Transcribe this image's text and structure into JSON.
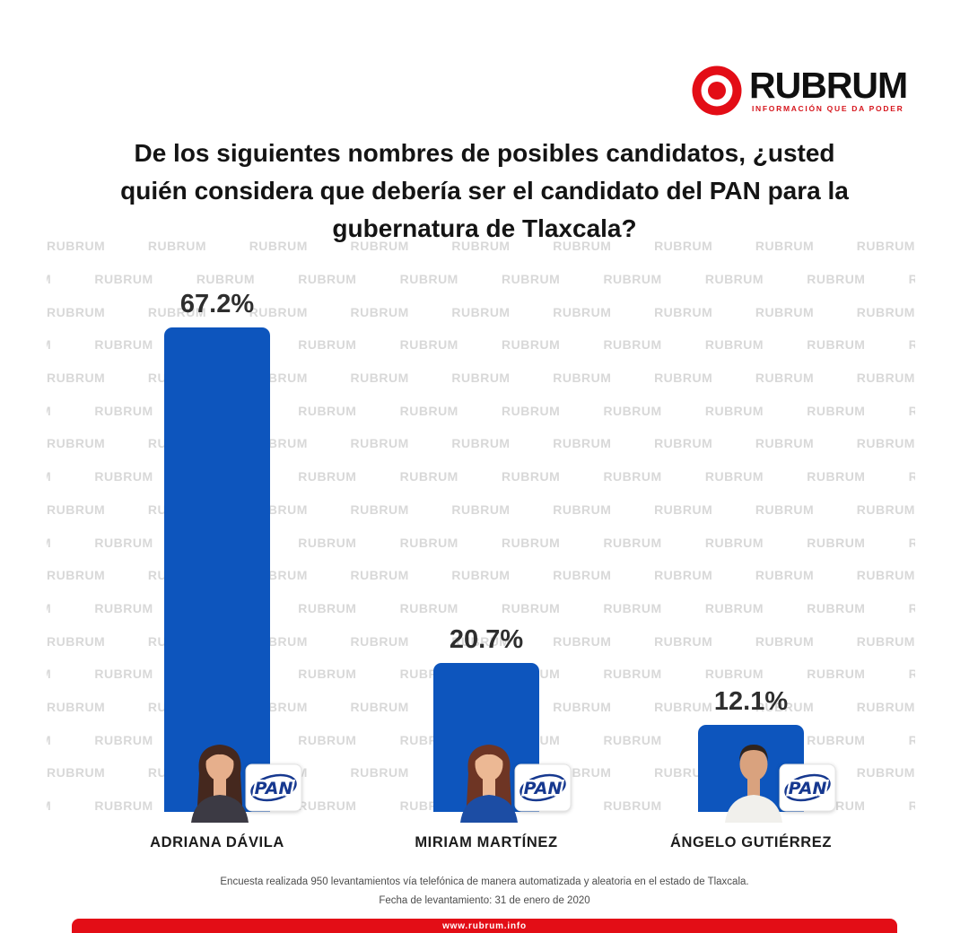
{
  "brand": {
    "name": "RUBRUM",
    "tagline": "INFORMACIÓN QUE DA PODER",
    "website": "www.rubrum.info"
  },
  "title_lines": [
    "De los siguientes nombres de posibles candidatos, ¿usted",
    "quién considera que debería ser el candidato del PAN para la",
    "gubernatura de Tlaxcala?"
  ],
  "watermark_text": "RUBRUM",
  "chart_data": {
    "type": "bar",
    "title": "De los siguientes nombres de posibles candidatos, ¿usted quién considera que debería ser el candidato del PAN para la gubernatura de Tlaxcala?",
    "categories": [
      "ADRIANA DÁVILA",
      "MIRIAM MARTÍNEZ",
      "ÁNGELO GUTIÉRREZ"
    ],
    "values": [
      67.2,
      20.7,
      12.1
    ],
    "value_labels": [
      "67.2%",
      "20.7%",
      "12.1%"
    ],
    "party_badge": "PAN",
    "ylim": [
      0,
      70
    ],
    "grid": false,
    "legend": false,
    "candidate_photos": [
      "woman-long-dark-hair",
      "woman-shoulder-auburn-hair-blue-top",
      "man-short-dark-hair-white-shirt"
    ]
  },
  "footnotes": {
    "line1": "Encuesta realizada 950 levantamientos vía telefónica de manera automatizada y aleatoria en el estado de Tlaxcala.",
    "line2": "Fecha de levantamiento: 31 de enero de 2020"
  },
  "colors": {
    "brand_red": "#e30d16",
    "bar_blue": "#0d55bd",
    "pan_blue": "#16388f"
  }
}
